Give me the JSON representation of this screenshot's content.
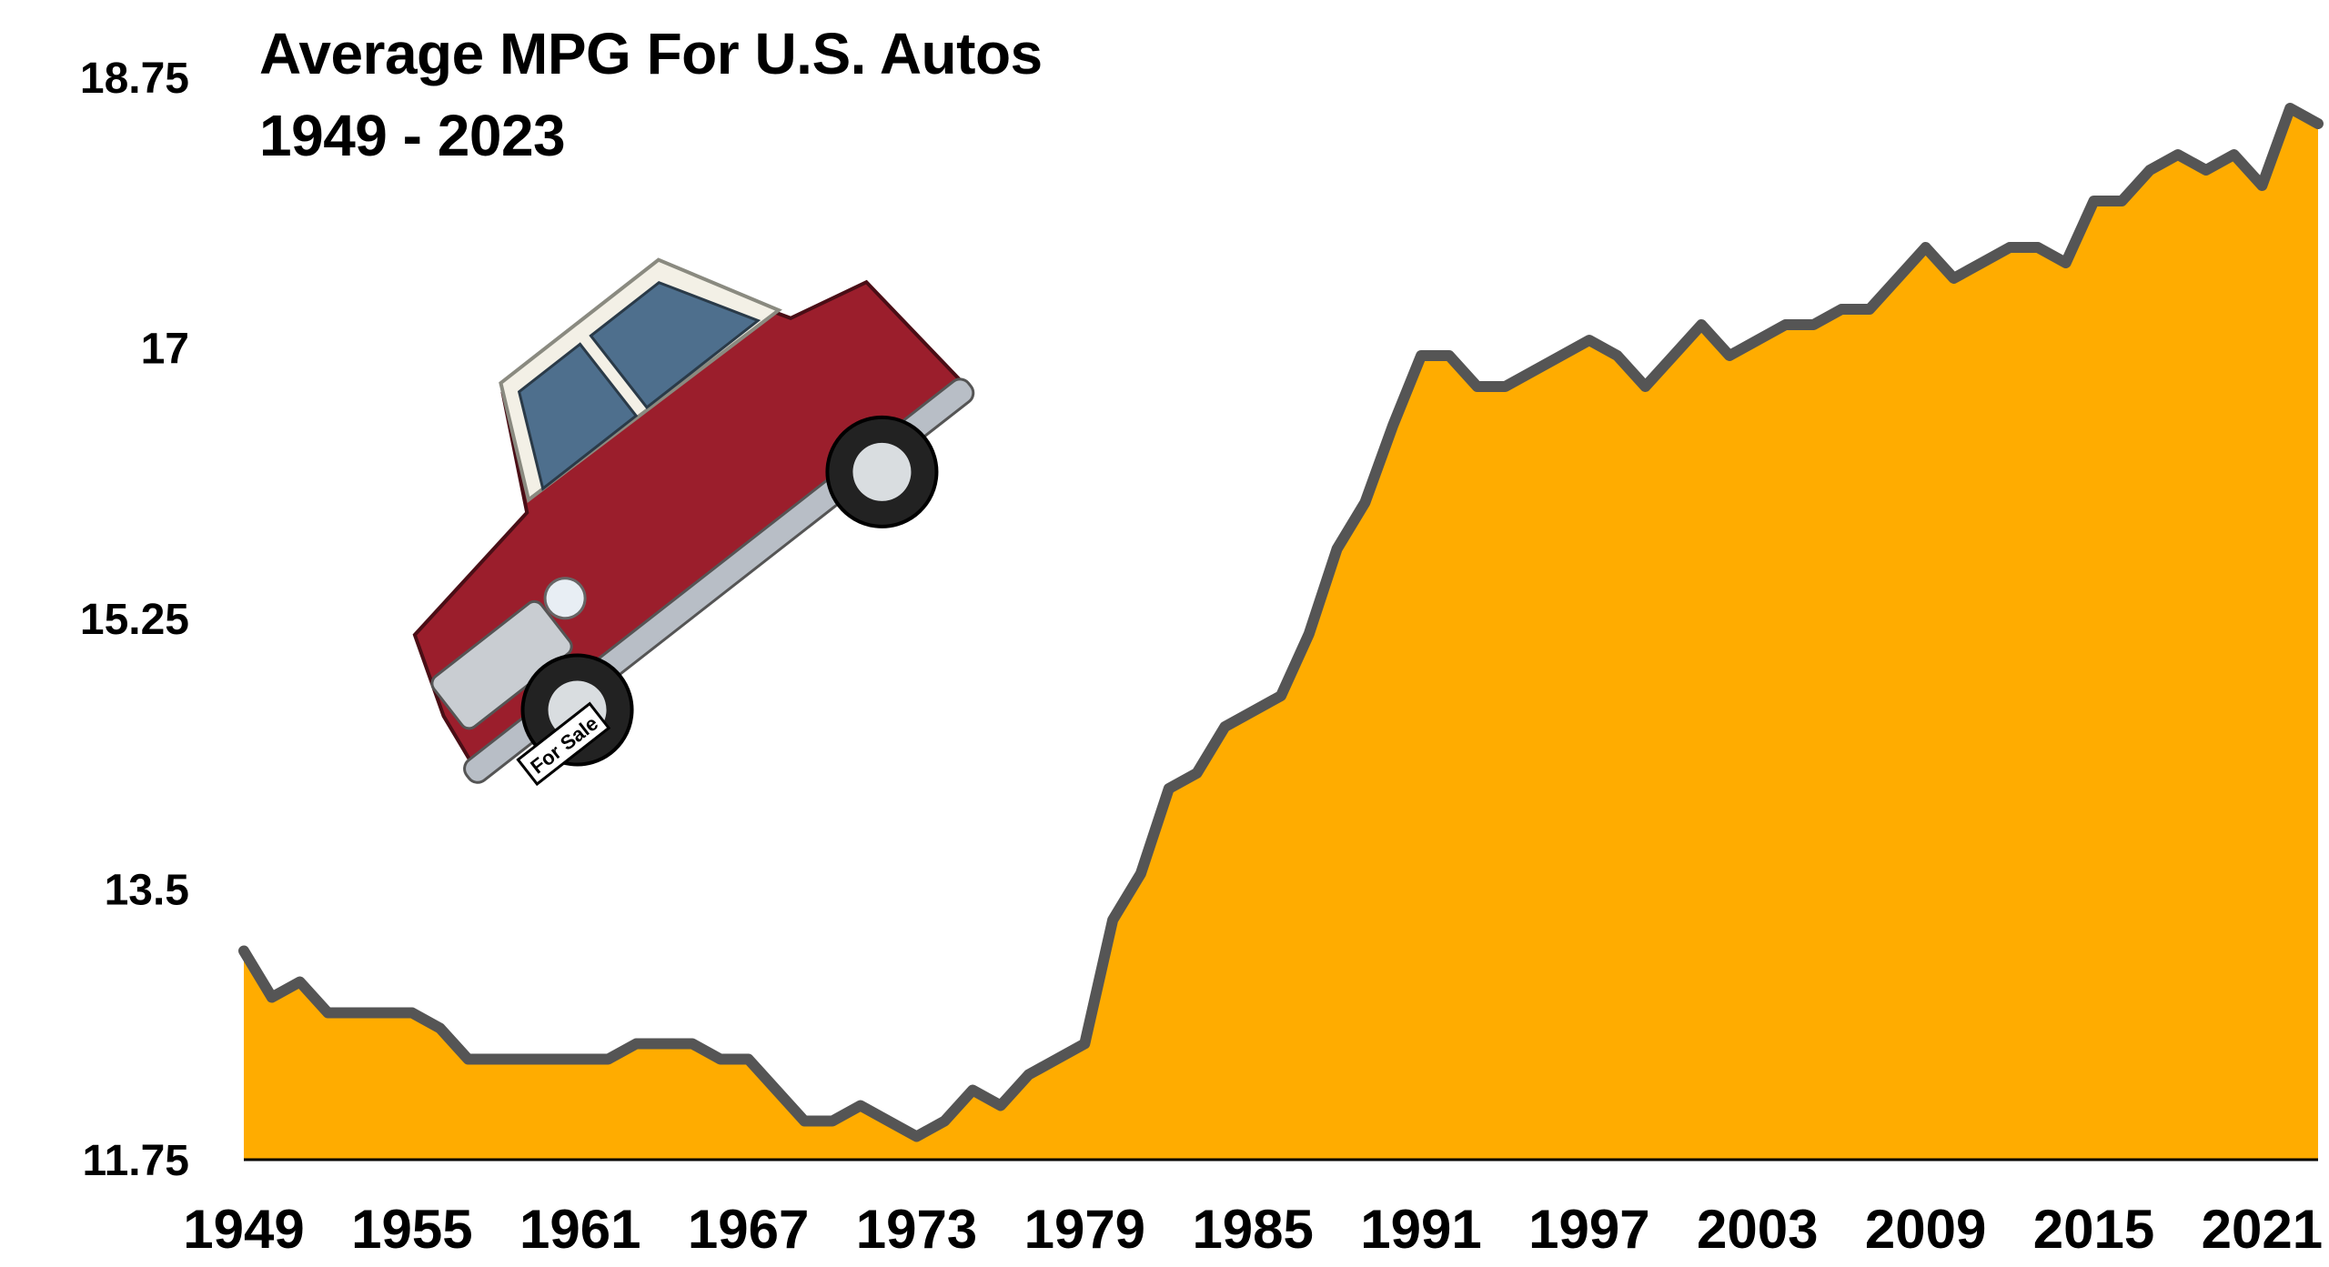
{
  "chart_data": {
    "type": "area",
    "title": "Average MPG For U.S. Autos",
    "subtitle": "1949 - 2023",
    "xlabel": "",
    "ylabel": "",
    "ylim": [
      11.75,
      18.75
    ],
    "xlim": [
      1949,
      2023
    ],
    "y_ticks": [
      "18.75",
      "17",
      "15.25",
      "13.5",
      "11.75"
    ],
    "y_tick_values": [
      18.75,
      17,
      15.25,
      13.5,
      11.75
    ],
    "x_ticks": [
      "1949",
      "1955",
      "1961",
      "1967",
      "1973",
      "1979",
      "1985",
      "1991",
      "1997",
      "2003",
      "2009",
      "2015",
      "2021"
    ],
    "x_tick_values": [
      1949,
      1955,
      1961,
      1967,
      1973,
      1979,
      1985,
      1991,
      1997,
      2003,
      2009,
      2015,
      2021
    ],
    "grid": false,
    "legend": "none",
    "colors": {
      "fill": "#FFAC00",
      "line": "#555555",
      "axis": "#000000"
    },
    "x": [
      1949,
      1950,
      1951,
      1952,
      1953,
      1954,
      1955,
      1956,
      1957,
      1958,
      1959,
      1960,
      1961,
      1962,
      1963,
      1964,
      1965,
      1966,
      1967,
      1968,
      1969,
      1970,
      1971,
      1972,
      1973,
      1974,
      1975,
      1976,
      1977,
      1978,
      1979,
      1980,
      1981,
      1982,
      1983,
      1984,
      1985,
      1986,
      1987,
      1988,
      1989,
      1990,
      1991,
      1992,
      1993,
      1994,
      1995,
      1996,
      1997,
      1998,
      1999,
      2000,
      2001,
      2002,
      2003,
      2004,
      2005,
      2006,
      2007,
      2008,
      2009,
      2010,
      2011,
      2012,
      2013,
      2014,
      2015,
      2016,
      2017,
      2018,
      2019,
      2020,
      2021,
      2022,
      2023
    ],
    "y": [
      13.1,
      12.8,
      12.9,
      12.7,
      12.7,
      12.7,
      12.7,
      12.6,
      12.4,
      12.4,
      12.4,
      12.4,
      12.4,
      12.4,
      12.5,
      12.5,
      12.5,
      12.4,
      12.4,
      12.2,
      12.0,
      12.0,
      12.1,
      12.0,
      11.9,
      12.0,
      12.2,
      12.1,
      12.3,
      12.4,
      12.5,
      13.3,
      13.6,
      14.15,
      14.25,
      14.55,
      14.65,
      14.75,
      15.15,
      15.7,
      16.0,
      16.5,
      16.95,
      16.95,
      16.75,
      16.75,
      16.85,
      16.95,
      17.05,
      16.95,
      16.75,
      16.95,
      17.15,
      16.95,
      17.05,
      17.15,
      17.15,
      17.25,
      17.25,
      17.45,
      17.65,
      17.45,
      17.55,
      17.65,
      17.65,
      17.55,
      17.95,
      17.95,
      18.15,
      18.25,
      18.15,
      18.25,
      18.05,
      18.55,
      18.45
    ]
  },
  "illustration": {
    "name": "red vintage car",
    "plate_text": "For Sale"
  }
}
